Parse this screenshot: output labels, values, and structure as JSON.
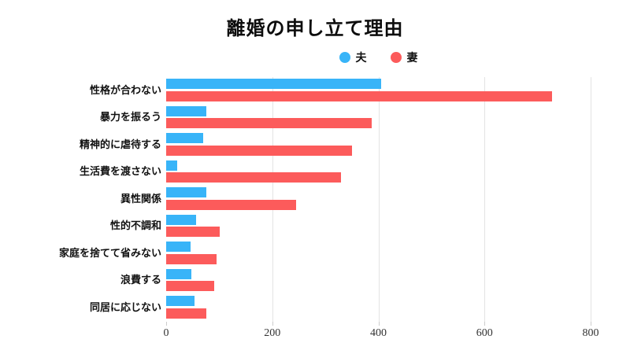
{
  "title": "離婚の申し立て理由",
  "legend": {
    "items": [
      {
        "label": "夫",
        "color": "#38b4f8"
      },
      {
        "label": "妻",
        "color": "#fc5b5b"
      }
    ]
  },
  "chart_data": {
    "type": "bar",
    "orientation": "horizontal",
    "title": "離婚の申し立て理由",
    "categories": [
      "性格が合わない",
      "暴力を振るう",
      "精神的に虐待する",
      "生活費を渡さない",
      "異性関係",
      "性的不調和",
      "家庭を捨てて省みない",
      "浪費する",
      "同居に応じない"
    ],
    "series": [
      {
        "name": "夫",
        "color": "#38b4f8",
        "values": [
          405,
          76,
          70,
          21,
          76,
          57,
          46,
          48,
          53
        ]
      },
      {
        "name": "妻",
        "color": "#fc5b5b",
        "values": [
          728,
          388,
          350,
          330,
          245,
          101,
          95,
          90,
          75
        ]
      }
    ],
    "xlim": [
      0,
      800
    ],
    "x_ticks": [
      0,
      200,
      400,
      600,
      800
    ],
    "grid": "vertical-only",
    "legend_position": "top-center"
  }
}
